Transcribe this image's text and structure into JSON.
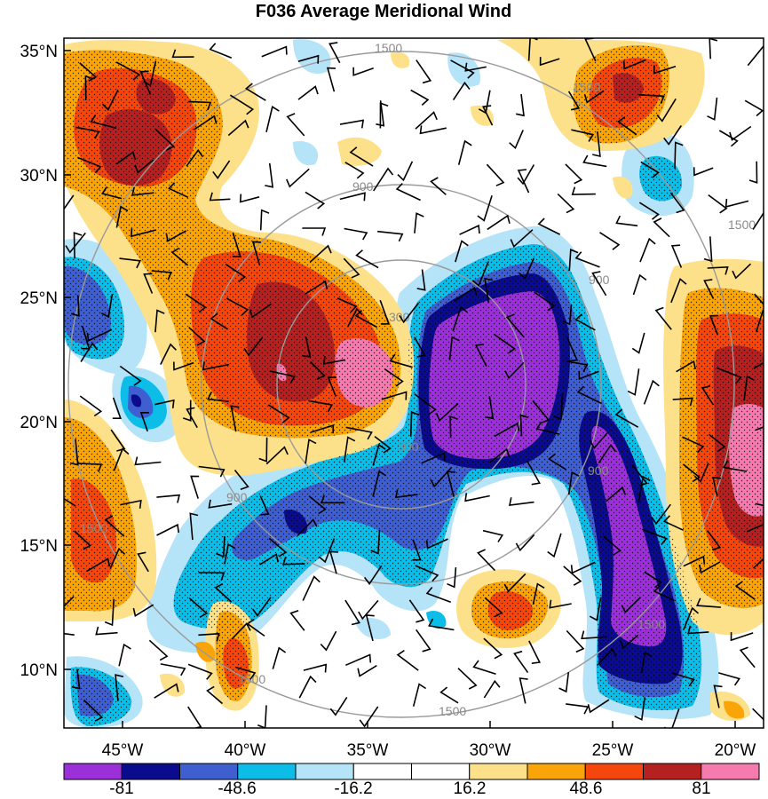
{
  "title": "F036 Average Meridional Wind",
  "lat_labels": [
    "35°N",
    "30°N",
    "25°N",
    "20°N",
    "15°N",
    "10°N"
  ],
  "lon_labels": [
    "45°W",
    "40°W",
    "35°W",
    "30°W",
    "25°W",
    "20°W"
  ],
  "ring_labels": [
    "1500",
    "1500",
    "1500",
    "900",
    "900",
    "900",
    "300",
    "300",
    "1500",
    "1500",
    "900",
    "1500",
    "1500"
  ],
  "colorbar": {
    "labels": [
      "-81",
      "-48.6",
      "-16.2",
      "16.2",
      "48.6",
      "81"
    ],
    "colors": [
      "#9b30d8",
      "#0b0b8e",
      "#3f5fd0",
      "#0cbde8",
      "#b5e3f8",
      "#ffffff",
      "#ffffff",
      "#fde18a",
      "#f9a50a",
      "#f5470d",
      "#b52020",
      "#f57bae"
    ]
  }
}
